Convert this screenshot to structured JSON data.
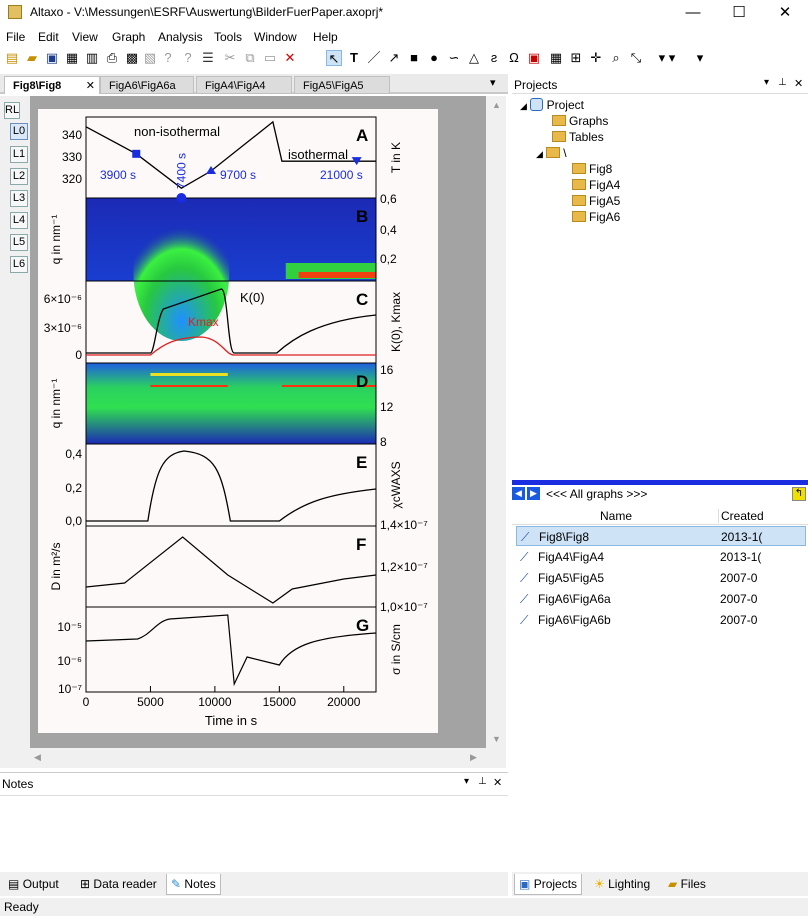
{
  "window": {
    "title": "Altaxo - V:\\Messungen\\ESRF\\Auswertung\\BilderFuerPaper.axoprj*",
    "minimize": "—",
    "maximize": "☐",
    "close": "✕"
  },
  "menu": [
    "File",
    "Edit",
    "View",
    "Graph",
    "Analysis",
    "Tools",
    "Window",
    "Help"
  ],
  "doc_tabs": [
    {
      "label": "Fig8\\Fig8",
      "close": "✕"
    },
    {
      "label": "FigA6\\FigA6a"
    },
    {
      "label": "FigA4\\FigA4"
    },
    {
      "label": "FigA5\\FigA5"
    }
  ],
  "layer_buttons": [
    "RL",
    "L0",
    "L1",
    "L2",
    "L3",
    "L4",
    "L5",
    "L6"
  ],
  "projects_panel": {
    "title": "Projects",
    "tree": {
      "root": "Project",
      "graphs": "Graphs",
      "tables": "Tables",
      "folder": "\\",
      "children": [
        "Fig8",
        "FigA4",
        "FigA5",
        "FigA6"
      ]
    }
  },
  "graph_list": {
    "selector": "<<< All graphs >>>",
    "col_name": "Name",
    "col_created": "Created",
    "rows": [
      {
        "name": "Fig8\\Fig8",
        "created": "2013-1("
      },
      {
        "name": "FigA4\\FigA4",
        "created": "2013-1("
      },
      {
        "name": "FigA5\\FigA5",
        "created": "2007-0"
      },
      {
        "name": "FigA6\\FigA6a",
        "created": "2007-0"
      },
      {
        "name": "FigA6\\FigA6b",
        "created": "2007-0"
      }
    ]
  },
  "notes_panel": {
    "title": "Notes"
  },
  "bottom_tabs": [
    "Output",
    "Data reader",
    "Notes"
  ],
  "right_tabs": [
    "Projects",
    "Lighting",
    "Files"
  ],
  "status": "Ready",
  "colors": {
    "accent_blue": "#1a2de0",
    "black_curve": "#000000",
    "red_curve": "#e02020"
  },
  "chart_data": {
    "type": "line",
    "xlabel": "Time in s",
    "x_ticks": [
      "0",
      "5000",
      "10000",
      "15000",
      "20000"
    ],
    "xlim": [
      0,
      22500
    ],
    "panels": [
      {
        "letter": "A",
        "ylabel": "T in K",
        "y_ticks": [
          "340",
          "330",
          "320"
        ],
        "labels": [
          "non-isothermal",
          "isothermal",
          "3900 s",
          "7400 s",
          "9700 s",
          "21000 s"
        ],
        "series": [
          {
            "x": [
              0,
              3900,
              7400,
              9700,
              14500,
              15200,
              21000,
              22500
            ],
            "y": [
              341,
              330,
              316,
              323,
              343,
              327,
              327,
              327
            ]
          }
        ]
      },
      {
        "letter": "B",
        "ylabel": "q in nm⁻¹",
        "y_ticks": [
          "0,6",
          "0,4",
          "0,2"
        ]
      },
      {
        "letter": "C",
        "ylabel": "K(0), Kmax",
        "y_ticks": [
          "6×10⁻⁶",
          "3×10⁻⁶",
          "0"
        ],
        "labels": [
          "K(0)",
          "Kmax"
        ]
      },
      {
        "letter": "D",
        "ylabel": "q in nm⁻¹",
        "y_ticks": [
          "16",
          "12",
          "8"
        ]
      },
      {
        "letter": "E",
        "ylabel": "χcWAXS",
        "y_ticks": [
          "0,4",
          "0,2",
          "0,0"
        ]
      },
      {
        "letter": "F",
        "ylabel": "D in m²/s",
        "y_ticks": [
          "1,4×10⁻⁷",
          "1,2×10⁻⁷",
          "1,0×10⁻⁷"
        ]
      },
      {
        "letter": "G",
        "ylabel": "σ in S/cm",
        "y_ticks": [
          "10⁻⁵",
          "10⁻⁶",
          "10⁻⁷"
        ]
      }
    ]
  }
}
